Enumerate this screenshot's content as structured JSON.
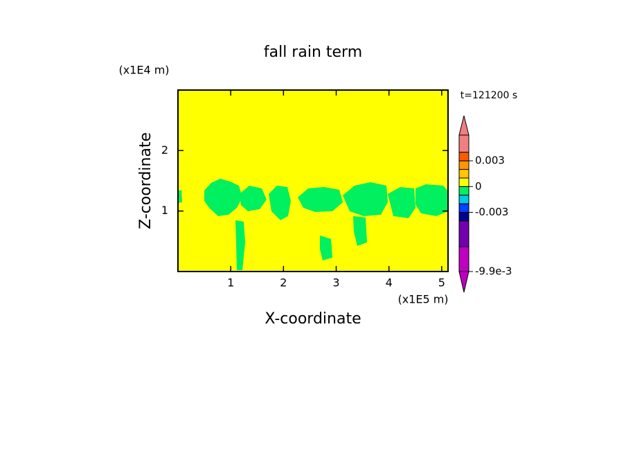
{
  "chart_data": {
    "type": "contour",
    "title": "fall rain term",
    "x_label": "X-coordinate",
    "y_label": "Z-coordinate",
    "x_unit": "(x1E5 m)",
    "y_unit": "(x1E4 m)",
    "time_label": "t=121200 s",
    "xlim": [
      0,
      5.12
    ],
    "ylim": [
      0,
      3
    ],
    "xticks": [
      1,
      2,
      3,
      4,
      5
    ],
    "yticks": [
      1,
      2
    ],
    "field_color": "#ffff00",
    "patch_color": "#00f060",
    "colorbar": {
      "bounds": [
        -0.0099,
        -0.007,
        -0.004,
        -0.003,
        -0.002,
        -0.001,
        0,
        0.001,
        0.002,
        0.003,
        0.004,
        0.006
      ],
      "colors": [
        "#c000c0",
        "#7000b0",
        "#000090",
        "#0040ff",
        "#00c8e8",
        "#00f060",
        "#ffff00",
        "#ffc800",
        "#ff9600",
        "#ff5a00",
        "#f08080"
      ],
      "low_color": "#c000c0",
      "high_color": "#f08080",
      "ticks": [
        0.003,
        0,
        -0.003,
        {
          "value": -0.0099,
          "label": "-9.9e-3"
        }
      ]
    }
  }
}
